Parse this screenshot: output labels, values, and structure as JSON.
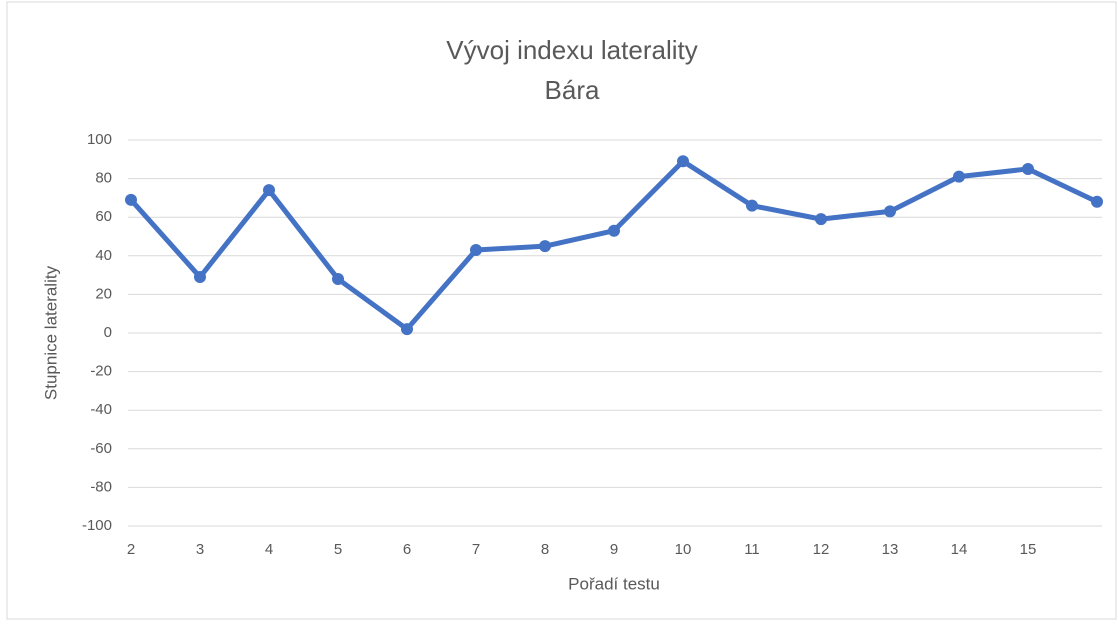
{
  "chart_data": {
    "type": "line",
    "title": "Vývoj indexu laterality",
    "subtitle": "Bára",
    "x_label": "Pořadí testu",
    "y_label": "Stupnice laterality",
    "categories": [
      "2",
      "3",
      "4",
      "5",
      "6",
      "7",
      "8",
      "9",
      "10",
      "11",
      "12",
      "13",
      "14",
      "15",
      null
    ],
    "series": [
      {
        "name": "Bára",
        "color": "#4472c4",
        "values": [
          69,
          29,
          74,
          28,
          2,
          43,
          45,
          53,
          89,
          66,
          59,
          63,
          81,
          85,
          68
        ]
      }
    ],
    "ylim": [
      -100,
      100
    ],
    "yticks": [
      -100,
      -80,
      -60,
      -40,
      -20,
      0,
      20,
      40,
      60,
      80,
      100
    ],
    "grid": true
  }
}
